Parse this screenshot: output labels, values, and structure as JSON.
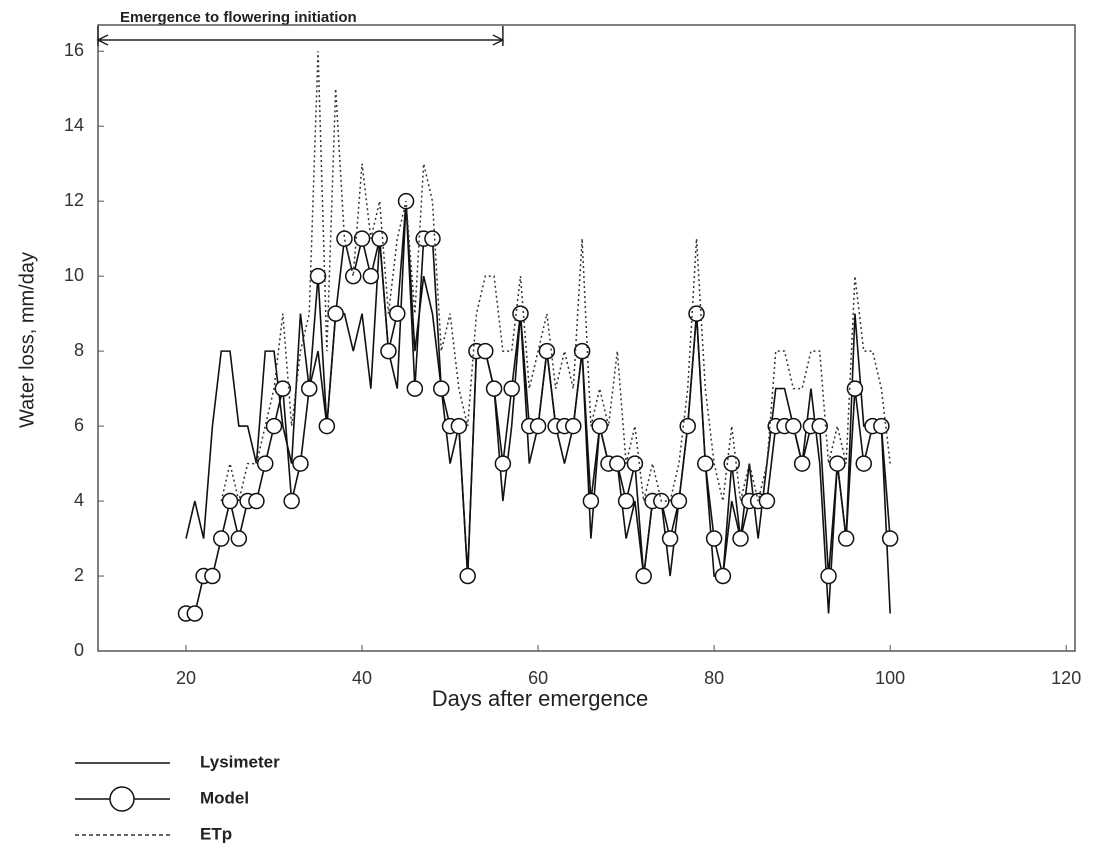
{
  "chart_data": {
    "type": "line",
    "x_label": "Days after emergence",
    "y_label": "Water loss, mm/day",
    "annotation": {
      "text": "Emergence to flowering initiation",
      "from": 10,
      "to": 56
    },
    "xlim": [
      10,
      121
    ],
    "xticks": [
      20,
      40,
      60,
      80,
      100,
      120
    ],
    "ylim": [
      0,
      16.7
    ],
    "yticks": [
      0,
      2,
      4,
      6,
      8,
      10,
      12,
      14,
      16
    ],
    "x": [
      20,
      21,
      22,
      23,
      24,
      25,
      26,
      27,
      28,
      29,
      30,
      31,
      32,
      33,
      34,
      35,
      36,
      37,
      38,
      39,
      40,
      41,
      42,
      43,
      44,
      45,
      46,
      47,
      48,
      49,
      50,
      51,
      52,
      53,
      54,
      55,
      56,
      57,
      58,
      59,
      60,
      61,
      62,
      63,
      64,
      65,
      66,
      67,
      68,
      69,
      70,
      71,
      72,
      73,
      74,
      75,
      76,
      77,
      78,
      79,
      80,
      81,
      82,
      83,
      84,
      85,
      86,
      87,
      88,
      89,
      90,
      91,
      92,
      93,
      94,
      95,
      96,
      97,
      98,
      99,
      100
    ],
    "series": [
      {
        "name": "Lysimeter",
        "color": "#111111",
        "style": "solid",
        "values": [
          3,
          4,
          3,
          6,
          8,
          8,
          6,
          6,
          5,
          8,
          8,
          6,
          5,
          9,
          7,
          8,
          6,
          9,
          9,
          8,
          9,
          7,
          11,
          8,
          7,
          12,
          8,
          10,
          9,
          7,
          5,
          6,
          2,
          8,
          8,
          7,
          4,
          6,
          9,
          5,
          6,
          8,
          6,
          5,
          6,
          8,
          3,
          6,
          5,
          5,
          3,
          4,
          2,
          4,
          4,
          2,
          4,
          6,
          9,
          5,
          2,
          2,
          4,
          3,
          5,
          3,
          5,
          7,
          7,
          6,
          5,
          7,
          5,
          1,
          5,
          3,
          9,
          6,
          6,
          6,
          1
        ]
      },
      {
        "name": "Model",
        "color": "#111111",
        "style": "circle",
        "values": [
          1,
          1,
          2,
          2,
          3,
          4,
          3,
          4,
          4,
          5,
          6,
          7,
          4,
          5,
          7,
          10,
          6,
          9,
          11,
          10,
          11,
          10,
          11,
          8,
          9,
          12,
          7,
          11,
          11,
          7,
          6,
          6,
          2,
          8,
          8,
          7,
          5,
          7,
          9,
          6,
          6,
          8,
          6,
          6,
          6,
          8,
          4,
          6,
          5,
          5,
          4,
          5,
          2,
          4,
          4,
          3,
          4,
          6,
          9,
          5,
          3,
          2,
          5,
          3,
          4,
          4,
          4,
          6,
          6,
          6,
          5,
          6,
          6,
          2,
          5,
          3,
          7,
          5,
          6,
          6,
          3
        ]
      },
      {
        "name": "ETp",
        "color": "#333333",
        "style": "dotted",
        "values": [
          null,
          null,
          null,
          null,
          4,
          5,
          4,
          5,
          5,
          6,
          7,
          9,
          6,
          8,
          9,
          16,
          8,
          15,
          11,
          10,
          13,
          11,
          12,
          9,
          11,
          12,
          9,
          13,
          12,
          8,
          9,
          7,
          6,
          9,
          10,
          10,
          8,
          8,
          10,
          7,
          8,
          9,
          7,
          8,
          7,
          11,
          6,
          7,
          6,
          8,
          5,
          6,
          4,
          5,
          4,
          4,
          5,
          7,
          11,
          7,
          5,
          4,
          6,
          4,
          5,
          4,
          5,
          8,
          8,
          7,
          7,
          8,
          8,
          5,
          6,
          5,
          10,
          8,
          8,
          7,
          5
        ]
      }
    ]
  }
}
